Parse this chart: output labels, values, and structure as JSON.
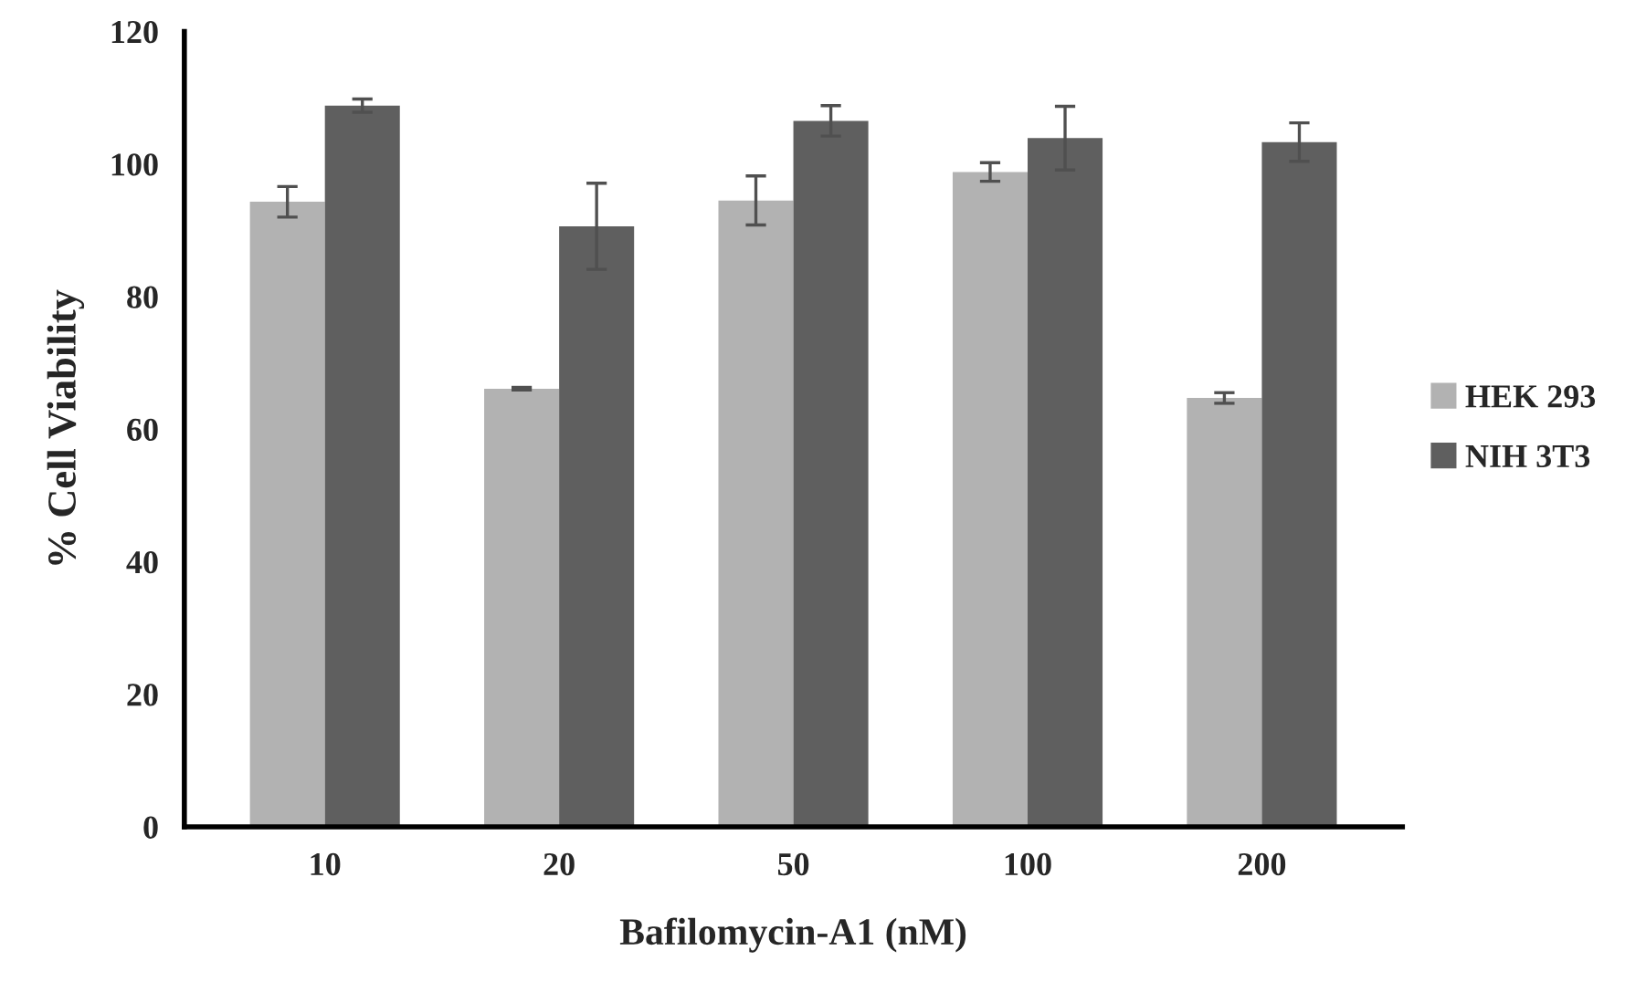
{
  "chart_data": {
    "type": "bar",
    "xlabel": "Bafilomycin-A1 (nM)",
    "ylabel": "% Cell Viability",
    "categories": [
      "10",
      "20",
      "50",
      "100",
      "200"
    ],
    "series": [
      {
        "name": "HEK 293",
        "color": "#b2b2b2",
        "values": [
          94.3,
          66.1,
          94.5,
          98.8,
          64.7
        ],
        "errors": [
          2.3,
          0.2,
          3.7,
          1.4,
          0.8
        ]
      },
      {
        "name": "NIH 3T3",
        "color": "#5f5f5f",
        "values": [
          108.8,
          90.6,
          106.5,
          103.9,
          103.3
        ],
        "errors": [
          1.0,
          6.5,
          2.3,
          4.8,
          2.9
        ]
      }
    ],
    "ylim": [
      0,
      120
    ],
    "yticks": [
      0,
      20,
      40,
      60,
      80,
      100,
      120
    ],
    "grid": false,
    "legend": "right"
  }
}
